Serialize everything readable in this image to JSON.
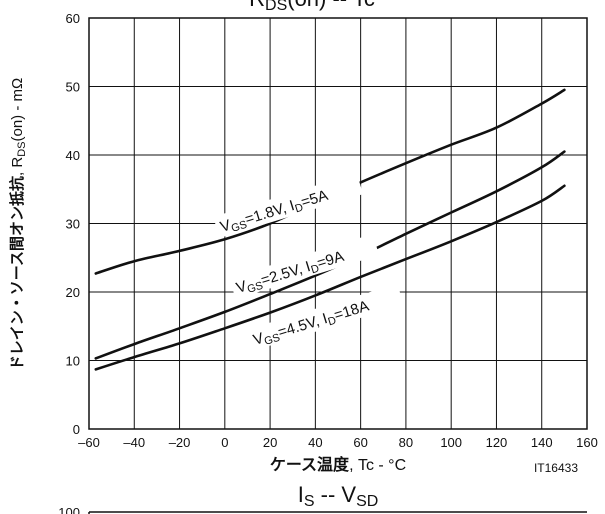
{
  "chart_data": [
    {
      "type": "line",
      "title": {
        "main": "R",
        "sub": "DS",
        "rest": "(on)  --  Tc"
      },
      "xlabel": {
        "bold": "ケース温度",
        "rest": ", Tc - °C"
      },
      "ylabel": {
        "bold": "ドレイン・ソース間オン抵抗",
        "rest1": ", R",
        "sub": "DS",
        "rest2": "(on) - mΩ"
      },
      "xlim": [
        -60,
        160
      ],
      "ylim": [
        0,
        60
      ],
      "xticks": [
        -60,
        -40,
        -20,
        0,
        20,
        40,
        60,
        80,
        100,
        120,
        140,
        160
      ],
      "yticks": [
        0,
        10,
        20,
        30,
        40,
        50,
        60
      ],
      "xtick_labels": [
        "–60",
        "–40",
        "–20",
        "0",
        "20",
        "40",
        "60",
        "80",
        "100",
        "120",
        "140",
        "160"
      ],
      "ytick_labels": [
        "0",
        "10",
        "20",
        "30",
        "40",
        "50",
        "60"
      ],
      "grid": true,
      "code": "IT16433",
      "series": [
        {
          "label": {
            "v": "V",
            "vs": "GS",
            "mid": "=1.8V, I",
            "is": "D",
            "end": "=5A"
          },
          "x": [
            -57,
            -40,
            -20,
            0,
            20,
            40,
            60,
            80,
            100,
            120,
            140,
            150
          ],
          "y": [
            22.7,
            24.5,
            26.0,
            27.7,
            30.0,
            33.0,
            36.0,
            38.8,
            41.5,
            44.0,
            47.5,
            49.5
          ]
        },
        {
          "label": {
            "v": "V",
            "vs": "GS",
            "mid": "=2.5V, I",
            "is": "D",
            "end": "=9A"
          },
          "x": [
            -57,
            -40,
            -20,
            0,
            20,
            40,
            60,
            80,
            100,
            120,
            140,
            150
          ],
          "y": [
            10.3,
            12.4,
            14.7,
            17.1,
            19.7,
            22.4,
            25.3,
            28.5,
            31.6,
            34.7,
            38.2,
            40.5
          ]
        },
        {
          "label": {
            "v": "V",
            "vs": "GS",
            "mid": "=4.5V, I",
            "is": "D",
            "end": "=18A"
          },
          "x": [
            -57,
            -40,
            -20,
            0,
            20,
            40,
            60,
            80,
            100,
            120,
            140,
            150
          ],
          "y": [
            8.7,
            10.5,
            12.5,
            14.7,
            17.0,
            19.5,
            22.2,
            24.8,
            27.4,
            30.2,
            33.3,
            35.5
          ]
        }
      ]
    },
    {
      "type": "line",
      "title": {
        "main": "I",
        "sub": "S",
        "mid": "  --  V",
        "sub2": "SD"
      },
      "ytick_labels": [
        "100"
      ]
    }
  ]
}
